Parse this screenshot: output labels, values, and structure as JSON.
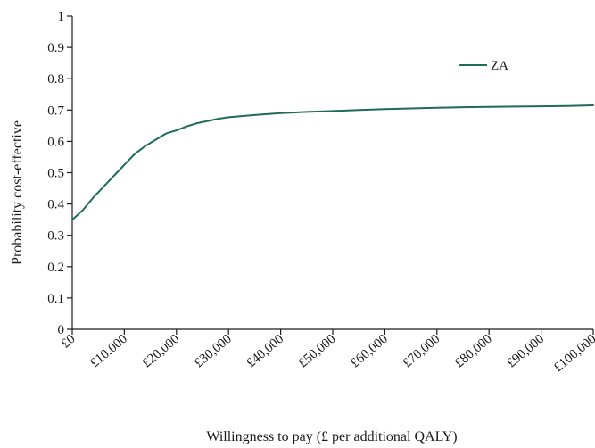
{
  "chart_data": {
    "type": "line",
    "xlabel": "Willingness to pay (£ per additional QALY)",
    "ylabel": "Probability cost-effective",
    "xlim": [
      0,
      100000
    ],
    "ylim": [
      0,
      1
    ],
    "grid": false,
    "legend_position": "top-right",
    "x_tick_values": [
      0,
      10000,
      20000,
      30000,
      40000,
      50000,
      60000,
      70000,
      80000,
      90000,
      100000
    ],
    "x_tick_labels": [
      "£0",
      "£10,000",
      "£20,000",
      "£30,000",
      "£40,000",
      "£50,000",
      "£60,000",
      "£70,000",
      "£80,000",
      "£90,000",
      "£100,000"
    ],
    "y_tick_values": [
      0,
      0.1,
      0.2,
      0.3,
      0.4,
      0.5,
      0.6,
      0.7,
      0.8,
      0.9,
      1
    ],
    "y_tick_labels": [
      "0",
      "0.1",
      "0.2",
      "0.3",
      "0.4",
      "0.5",
      "0.6",
      "0.7",
      "0.8",
      "0.9",
      "1"
    ],
    "series": [
      {
        "name": "ZA",
        "color": "#1f6b5a",
        "x": [
          0,
          2000,
          4000,
          6000,
          8000,
          10000,
          12000,
          14000,
          16000,
          18000,
          20000,
          22000,
          24000,
          26000,
          28000,
          30000,
          35000,
          40000,
          45000,
          50000,
          55000,
          60000,
          65000,
          70000,
          75000,
          80000,
          85000,
          90000,
          95000,
          100000
        ],
        "y": [
          0.35,
          0.38,
          0.42,
          0.455,
          0.49,
          0.525,
          0.56,
          0.585,
          0.605,
          0.625,
          0.635,
          0.648,
          0.658,
          0.665,
          0.672,
          0.677,
          0.684,
          0.69,
          0.694,
          0.697,
          0.7,
          0.703,
          0.705,
          0.707,
          0.709,
          0.71,
          0.711,
          0.712,
          0.713,
          0.715
        ]
      }
    ]
  }
}
